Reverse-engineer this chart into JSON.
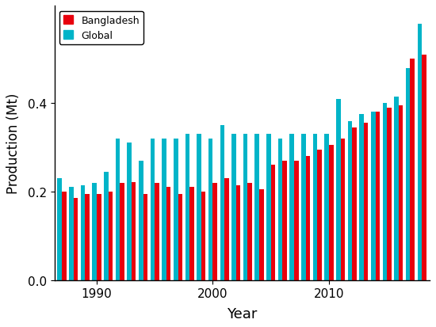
{
  "years": [
    1987,
    1988,
    1989,
    1990,
    1991,
    1992,
    1993,
    1994,
    1995,
    1996,
    1997,
    1998,
    1999,
    2000,
    2001,
    2002,
    2003,
    2004,
    2005,
    2006,
    2007,
    2008,
    2009,
    2010,
    2011,
    2012,
    2013,
    2014,
    2015,
    2016,
    2017,
    2018
  ],
  "bangladesh": [
    0.2,
    0.185,
    0.195,
    0.195,
    0.2,
    0.22,
    0.222,
    0.195,
    0.22,
    0.21,
    0.195,
    0.21,
    0.2,
    0.22,
    0.23,
    0.215,
    0.22,
    0.205,
    0.26,
    0.27,
    0.27,
    0.28,
    0.295,
    0.305,
    0.32,
    0.345,
    0.355,
    0.38,
    0.39,
    0.395,
    0.5,
    0.51
  ],
  "global": [
    0.23,
    0.21,
    0.215,
    0.22,
    0.245,
    0.32,
    0.31,
    0.27,
    0.32,
    0.32,
    0.32,
    0.33,
    0.33,
    0.32,
    0.35,
    0.33,
    0.33,
    0.33,
    0.33,
    0.32,
    0.33,
    0.33,
    0.33,
    0.33,
    0.41,
    0.36,
    0.375,
    0.38,
    0.4,
    0.415,
    0.48,
    0.58
  ],
  "bar_color_bangladesh": "#e8000d",
  "bar_color_global": "#00b4c8",
  "xlabel": "Year",
  "ylabel": "Production (Mt)",
  "ylim": [
    0.0,
    0.62
  ],
  "yticks": [
    0.0,
    0.2,
    0.4
  ],
  "xtick_years": [
    1990,
    2000,
    2010
  ],
  "legend_labels": [
    "Bangladesh",
    "Global"
  ],
  "figsize": [
    5.5,
    4.14
  ],
  "dpi": 100
}
